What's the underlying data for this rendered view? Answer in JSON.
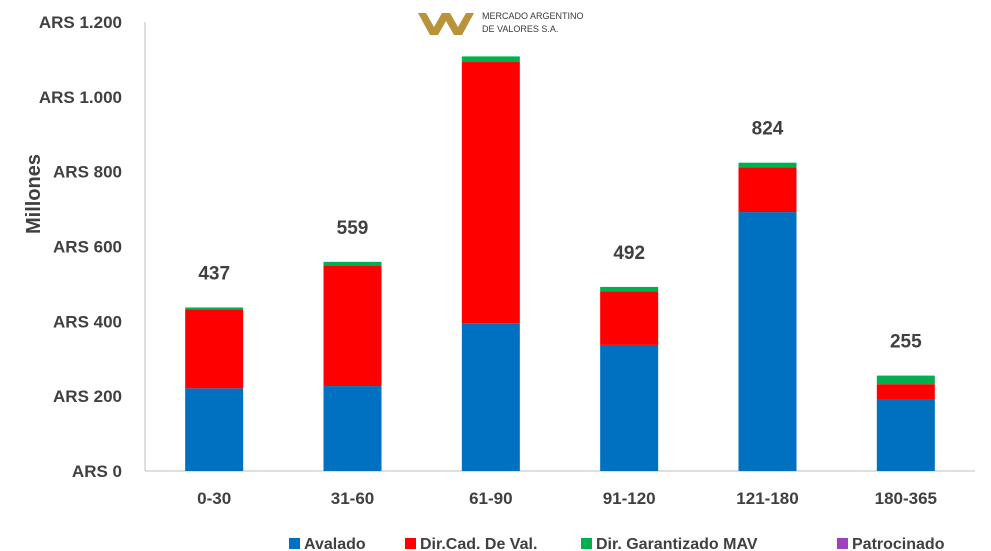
{
  "logo": {
    "line1": "MERCADO ARGENTINO",
    "line2": "DE VALORES S.A."
  },
  "chart_data": {
    "type": "bar",
    "stacked": true,
    "title": "",
    "xlabel": "",
    "ylabel": "Millones",
    "ylim": [
      0,
      1200
    ],
    "ytick_values": [
      0,
      200,
      400,
      600,
      800,
      1000,
      1200
    ],
    "ytick_labels": [
      "ARS 0",
      "ARS 200",
      "ARS 400",
      "ARS 600",
      "ARS 800",
      "ARS 1.000",
      "ARS 1.200"
    ],
    "categories": [
      "0-30",
      "31-60",
      "61-90",
      "91-120",
      "121-180",
      "180-365"
    ],
    "series": [
      {
        "name": "Avalado",
        "color": "#0070C0",
        "values": [
          221,
          227,
          395,
          337,
          692,
          190
        ]
      },
      {
        "name": "Dir.Cad. De Val.",
        "color": "#FF0000",
        "values": [
          211,
          322,
          698,
          143,
          120,
          42
        ]
      },
      {
        "name": "Dir. Garantizado MAV",
        "color": "#00B050",
        "values": [
          5,
          10,
          15,
          12,
          12,
          23
        ]
      },
      {
        "name": "Patrocinado",
        "color": "#A040C0",
        "values": [
          0,
          0,
          0,
          0,
          0,
          0
        ]
      }
    ],
    "totals": [
      437,
      559,
      null,
      492,
      824,
      255
    ],
    "total_labels": [
      "437",
      "559",
      "",
      "492",
      "824",
      "255"
    ],
    "grid": false,
    "legend_position": "bottom"
  }
}
